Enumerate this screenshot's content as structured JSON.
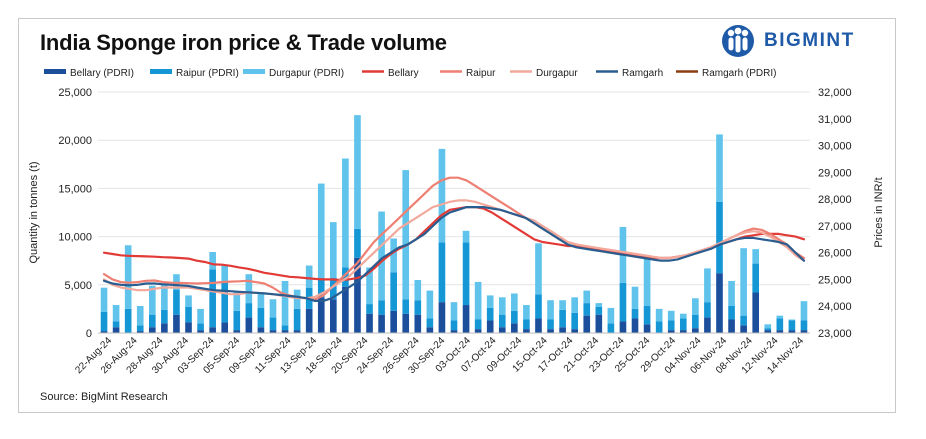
{
  "title": "India Sponge iron price & Trade volume",
  "brand": "BIGMINT",
  "source": "Source: BigMint Research",
  "colors": {
    "bellary_bar": "#1b4f9c",
    "raipur_bar": "#1597d6",
    "durgapur_bar": "#5fc3ec",
    "bellary_line": "#e23a36",
    "raipur_line": "#ee7f73",
    "durgapur_line": "#f2a89b",
    "ramgarh_line": "#2a5d8f",
    "ramgarh_pdri_line": "#8b3d12",
    "brand": "#1e5aa8"
  },
  "chart_data": {
    "type": "bar",
    "title": "India Sponge iron price & Trade volume",
    "ylabel": "Quantity in tonnes (t)",
    "y2label": "Prices in INR/t",
    "ylim": [
      0,
      25000
    ],
    "y2lim": [
      23000,
      32000
    ],
    "yticks": [
      "0",
      "5,000",
      "10,000",
      "15,000",
      "20,000",
      "25,000"
    ],
    "y2ticks": [
      "23,000",
      "24,000",
      "25,000",
      "26,000",
      "27,000",
      "28,000",
      "29,000",
      "30,000",
      "31,000",
      "32,000"
    ],
    "xtick_labels": [
      "22-Aug-24",
      "26-Aug-24",
      "28-Aug-24",
      "30-Aug-24",
      "03-Sep-24",
      "05-Sep-24",
      "09-Sep-24",
      "11-Sep-24",
      "13-Sep-24",
      "18-Sep-24",
      "20-Sep-24",
      "24-Sep-24",
      "26-Sep-24",
      "30-Sep-24",
      "03-Oct-24",
      "07-Oct-24",
      "09-Oct-24",
      "15-Oct-24",
      "17-Oct-24",
      "21-Oct-24",
      "23-Oct-24",
      "25-Oct-24",
      "29-Oct-24",
      "04-Nov-24",
      "06-Nov-24",
      "08-Nov-24",
      "12-Nov-24",
      "14-Nov-24"
    ],
    "bar_series": [
      {
        "name": "Bellary (PDRI)",
        "key": "bellary_bar",
        "values": [
          200,
          600,
          0,
          200,
          600,
          1000,
          1900,
          1100,
          300,
          600,
          1100,
          300,
          1600,
          600,
          300,
          300,
          300,
          2500,
          3700,
          3500,
          4800,
          7800,
          2000,
          1900,
          2300,
          2000,
          1900,
          600,
          3200,
          300,
          2900,
          400,
          1300,
          600,
          1000,
          400,
          1500,
          400,
          600,
          400,
          1800,
          1900,
          0,
          1200,
          1500,
          900,
          0,
          300,
          300,
          500,
          1600,
          6200,
          1400,
          800,
          4200,
          300,
          300,
          300,
          300
        ]
      },
      {
        "name": "Raipur (PDRI)",
        "key": "raipur_bar",
        "values": [
          2000,
          600,
          2500,
          600,
          1300,
          1400,
          2600,
          1600,
          700,
          6000,
          4200,
          2000,
          1500,
          2000,
          1300,
          500,
          2200,
          2200,
          2000,
          2200,
          2000,
          3000,
          1000,
          1500,
          4000,
          1500,
          1500,
          900,
          6200,
          1000,
          6500,
          1000,
          1300,
          1300,
          1300,
          1000,
          2500,
          1000,
          1800,
          1700,
          1300,
          800,
          1000,
          4000,
          1000,
          1900,
          1200,
          1000,
          1200,
          1400,
          1600,
          7400,
          1400,
          1000,
          3000,
          200,
          1200,
          1000,
          1000
        ]
      },
      {
        "name": "Durgapur (PDRI)",
        "key": "durgapur_bar",
        "values": [
          2500,
          1700,
          6600,
          2000,
          3000,
          2600,
          1600,
          1200,
          1500,
          1800,
          1700,
          2000,
          3000,
          1500,
          1900,
          4600,
          2000,
          2300,
          9800,
          5800,
          11300,
          11800,
          3800,
          9200,
          3500,
          13400,
          2100,
          2900,
          9700,
          1900,
          1200,
          3900,
          1300,
          1800,
          1800,
          1500,
          5300,
          2000,
          1000,
          1600,
          1300,
          400,
          1600,
          5800,
          2300,
          4900,
          1300,
          1000,
          500,
          1700,
          3500,
          7000,
          2600,
          7000,
          1500,
          400,
          300,
          100,
          2000
        ]
      }
    ],
    "line_series": [
      {
        "name": "Bellary",
        "key": "bellary_line",
        "values": [
          26000,
          25950,
          25900,
          25880,
          25870,
          25860,
          25850,
          25830,
          25820,
          25800,
          25780,
          25700,
          25650,
          25560,
          25550,
          25510,
          25450,
          25400,
          25330,
          25250,
          25200,
          25150,
          25100,
          25080,
          25050,
          25020,
          25000,
          25000,
          24980,
          25000,
          25050,
          25150,
          25400,
          25700,
          25950,
          26150,
          26300,
          26500,
          26800,
          27100,
          27400,
          27600,
          27650,
          27700,
          27700,
          27650,
          27500,
          27300,
          27100,
          26900,
          26700,
          26500,
          26400,
          26350,
          26300,
          26250,
          26250,
          26200,
          26150,
          26100,
          26050,
          26000,
          25950,
          25900,
          25850,
          25800,
          25800,
          25800,
          25850,
          25900,
          26000,
          26100,
          26200,
          26300,
          26400,
          26500,
          26600,
          26650,
          26700,
          26700,
          26700,
          26650,
          26600,
          26500
        ]
      },
      {
        "name": "Raipur",
        "key": "raipur_line",
        "values": [
          25200,
          25000,
          24900,
          24880,
          24900,
          24950,
          24960,
          24900,
          24880,
          24870,
          24860,
          24850,
          24860,
          24870,
          24900,
          24920,
          24930,
          24950,
          24900,
          24850,
          24700,
          24500,
          24400,
          24350,
          24300,
          24250,
          24400,
          24700,
          25000,
          25300,
          25600,
          26000,
          26400,
          26700,
          27000,
          27300,
          27600,
          27900,
          28200,
          28500,
          28700,
          28800,
          28800,
          28700,
          28500,
          28300,
          28100,
          27900,
          27700,
          27500,
          27300,
          27100,
          26900,
          26700,
          26500,
          26400,
          26300,
          26250,
          26200,
          26150,
          26100,
          26050,
          26000,
          25950,
          25900,
          25850,
          25800,
          25800,
          25850,
          25900,
          26000,
          26100,
          26200,
          26350,
          26500,
          26650,
          26800,
          26900,
          26850,
          26700,
          26500,
          26300,
          26000,
          25800
        ]
      },
      {
        "name": "Durgapur",
        "key": "durgapur_line",
        "values": [
          25000,
          24800,
          24700,
          24650,
          24600,
          24600,
          24650,
          24700,
          24700,
          24700,
          24700,
          24650,
          24600,
          24550,
          24500,
          24450,
          24450,
          24500,
          24500,
          24480,
          24450,
          24400,
          24350,
          24300,
          24300,
          24350,
          24500,
          24700,
          24900,
          25100,
          25400,
          25700,
          26000,
          26300,
          26600,
          26900,
          27100,
          27300,
          27500,
          27700,
          27800,
          27900,
          27950,
          27950,
          27900,
          27800,
          27700,
          27600,
          27500,
          27400,
          27300,
          27200,
          27000,
          26800,
          26600,
          26400,
          26300,
          26250,
          26200,
          26150,
          26100,
          26050,
          26000,
          25950,
          25900,
          25850,
          25800,
          25800,
          25850,
          25900,
          26000,
          26100,
          26200,
          26350,
          26500,
          26650,
          26750,
          26800,
          26750,
          26600,
          26400,
          26200,
          25900,
          25700
        ]
      },
      {
        "name": "Ramgarh",
        "key": "ramgarh_line",
        "values": [
          24950,
          24850,
          24800,
          24780,
          24800,
          24850,
          24850,
          24820,
          24800,
          24780,
          24760,
          24700,
          24650,
          24600,
          24580,
          24560,
          24540,
          24520,
          24500,
          24480,
          24450,
          24420,
          24380,
          24350,
          24300,
          24200,
          24200,
          24300,
          24500,
          24700,
          24900,
          25200,
          25500,
          25800,
          26000,
          26200,
          26300,
          26500,
          26700,
          27000,
          27300,
          27500,
          27600,
          27700,
          27700,
          27700,
          27650,
          27600,
          27500,
          27400,
          27300,
          27100,
          26900,
          26700,
          26500,
          26300,
          26200,
          26150,
          26100,
          26050,
          26000,
          25950,
          25900,
          25850,
          25800,
          25750,
          25700,
          25700,
          25750,
          25850,
          25950,
          26050,
          26150,
          26300,
          26400,
          26500,
          26550,
          26550,
          26500,
          26450,
          26400,
          26300,
          26000,
          25700
        ]
      },
      {
        "name": "Ramgarh (PDRI)",
        "key": "ramgarh_pdri_line",
        "values": []
      }
    ]
  }
}
